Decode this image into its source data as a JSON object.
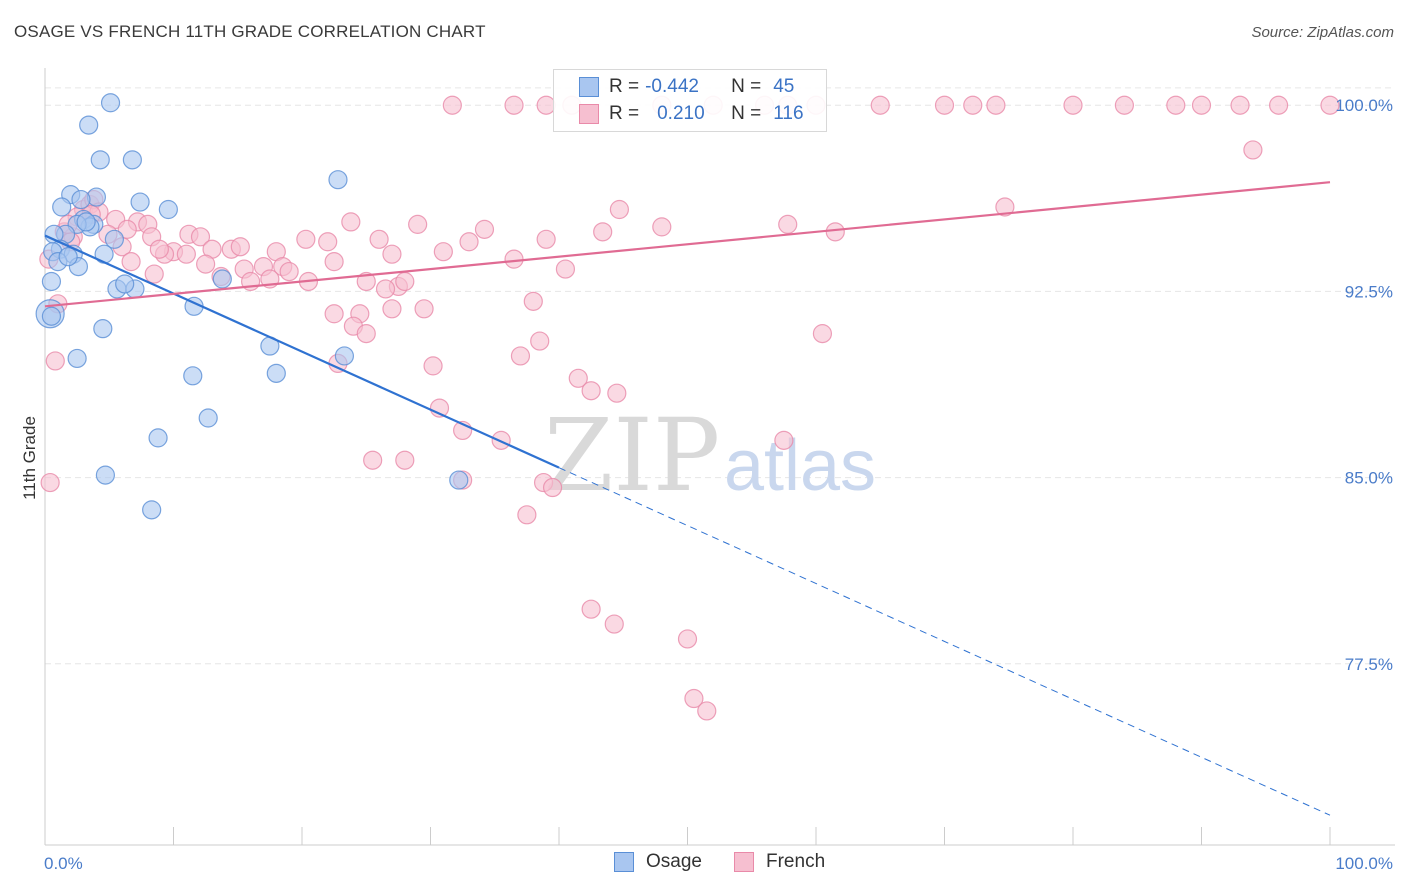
{
  "title": "OSAGE VS FRENCH 11TH GRADE CORRELATION CHART",
  "source": "Source: ZipAtlas.com",
  "watermark": {
    "zip": "ZIP",
    "atlas": "atlas"
  },
  "legend": {
    "rows": [
      {
        "r_label": "R =",
        "r_value": "-0.442",
        "n_label": "N =",
        "n_value": "45"
      },
      {
        "r_label": "R =",
        "r_value": "0.210",
        "n_label": "N =",
        "n_value": "116"
      }
    ]
  },
  "bottom_legend": {
    "osage": "Osage",
    "french": "French"
  },
  "colors": {
    "osage_fill": "#a9c6f0",
    "osage_stroke": "#5a8fd6",
    "osage_line": "#2f72d1",
    "french_fill": "#f6bfd0",
    "french_stroke": "#e98aa9",
    "french_line": "#e06b93",
    "tick_label": "#4a7cc9",
    "grid": "#e6e6e6"
  },
  "chart_data": {
    "type": "scatter",
    "title": "OSAGE VS FRENCH 11TH GRADE CORRELATION CHART",
    "xlabel": "",
    "ylabel": "11th Grade",
    "xlim": [
      0,
      100
    ],
    "ylim": [
      70.2,
      101.5
    ],
    "x_tick_labels": [
      "0.0%",
      "100.0%"
    ],
    "y_ticks": [
      100.0,
      92.5,
      85.0,
      77.5
    ],
    "y_tick_labels": [
      "100.0%",
      "92.5%",
      "85.0%",
      "77.5%"
    ],
    "series": [
      {
        "name": "Osage",
        "R": -0.442,
        "N": 45,
        "trend": {
          "x0": 0,
          "y0": 94.75,
          "x1": 40,
          "y1": 85.4,
          "dash_x1": 100,
          "dash_y1": 71.4
        },
        "points": [
          [
            5.1,
            100.1
          ],
          [
            3.4,
            99.2
          ],
          [
            4.3,
            97.8
          ],
          [
            6.8,
            97.8
          ],
          [
            22.8,
            97.0
          ],
          [
            2.0,
            96.4
          ],
          [
            1.3,
            95.9
          ],
          [
            7.4,
            96.1
          ],
          [
            4.0,
            96.3
          ],
          [
            9.6,
            95.8
          ],
          [
            3.0,
            95.4
          ],
          [
            3.8,
            95.2
          ],
          [
            3.5,
            95.1
          ],
          [
            2.5,
            95.2
          ],
          [
            1.6,
            94.8
          ],
          [
            0.7,
            94.8
          ],
          [
            5.4,
            94.6
          ],
          [
            1.2,
            94.2
          ],
          [
            0.6,
            94.1
          ],
          [
            2.2,
            94.0
          ],
          [
            4.6,
            94.0
          ],
          [
            1.0,
            93.7
          ],
          [
            2.6,
            93.5
          ],
          [
            0.5,
            92.9
          ],
          [
            5.6,
            92.6
          ],
          [
            7.0,
            92.6
          ],
          [
            13.8,
            93.0
          ],
          [
            11.6,
            91.9
          ],
          [
            0.4,
            91.6
          ],
          [
            4.5,
            91.0
          ],
          [
            17.5,
            90.3
          ],
          [
            23.3,
            89.9
          ],
          [
            2.5,
            89.8
          ],
          [
            18.0,
            89.2
          ],
          [
            11.5,
            89.1
          ],
          [
            12.7,
            87.4
          ],
          [
            8.8,
            86.6
          ],
          [
            4.7,
            85.1
          ],
          [
            32.2,
            84.9
          ],
          [
            8.3,
            83.7
          ],
          [
            0.5,
            91.5
          ],
          [
            1.8,
            93.9
          ],
          [
            3.2,
            95.3
          ],
          [
            2.8,
            96.2
          ],
          [
            6.2,
            92.8
          ]
        ],
        "sizes": [
          9,
          9,
          9,
          9,
          9,
          9,
          9,
          9,
          9,
          9,
          9,
          9,
          9,
          9,
          9,
          9,
          9,
          9,
          9,
          9,
          9,
          9,
          9,
          9,
          9,
          9,
          9,
          9,
          14,
          9,
          9,
          9,
          9,
          9,
          9,
          9,
          9,
          9,
          9,
          9,
          9,
          9,
          9,
          9,
          9
        ]
      },
      {
        "name": "French",
        "R": 0.21,
        "N": 116,
        "trend": {
          "x0": 0,
          "y0": 91.9,
          "x1": 100,
          "y1": 96.9
        },
        "points": [
          [
            31.7,
            100.0
          ],
          [
            39.0,
            100.0
          ],
          [
            41.0,
            100.0
          ],
          [
            48.0,
            100.0
          ],
          [
            52.0,
            100.0
          ],
          [
            56.0,
            100.0
          ],
          [
            60.0,
            100.0
          ],
          [
            65.0,
            100.0
          ],
          [
            70.0,
            100.0
          ],
          [
            74.0,
            100.0
          ],
          [
            80.0,
            100.0
          ],
          [
            84.0,
            100.0
          ],
          [
            88.0,
            100.0
          ],
          [
            90.0,
            100.0
          ],
          [
            93.0,
            100.0
          ],
          [
            96.0,
            100.0
          ],
          [
            100.0,
            100.0
          ],
          [
            36.5,
            100.0
          ],
          [
            57.8,
            100.0
          ],
          [
            72.2,
            100.0
          ],
          [
            94.0,
            98.2
          ],
          [
            74.7,
            95.9
          ],
          [
            44.7,
            95.8
          ],
          [
            3.0,
            95.8
          ],
          [
            3.5,
            96.0
          ],
          [
            3.8,
            96.2
          ],
          [
            4.2,
            95.7
          ],
          [
            2.5,
            95.5
          ],
          [
            5.5,
            95.4
          ],
          [
            7.2,
            95.3
          ],
          [
            8.0,
            95.2
          ],
          [
            23.8,
            95.3
          ],
          [
            29.0,
            95.2
          ],
          [
            34.2,
            95.0
          ],
          [
            43.4,
            94.9
          ],
          [
            48.0,
            95.1
          ],
          [
            57.8,
            95.2
          ],
          [
            61.5,
            94.9
          ],
          [
            1.5,
            94.9
          ],
          [
            2.2,
            94.7
          ],
          [
            4.9,
            94.8
          ],
          [
            8.3,
            94.7
          ],
          [
            11.2,
            94.8
          ],
          [
            12.1,
            94.7
          ],
          [
            20.3,
            94.6
          ],
          [
            22.0,
            94.5
          ],
          [
            26.0,
            94.6
          ],
          [
            33.0,
            94.5
          ],
          [
            39.0,
            94.6
          ],
          [
            6.0,
            94.3
          ],
          [
            10.0,
            94.1
          ],
          [
            13.0,
            94.2
          ],
          [
            14.5,
            94.2
          ],
          [
            15.2,
            94.3
          ],
          [
            18.0,
            94.1
          ],
          [
            9.3,
            94.0
          ],
          [
            11.0,
            94.0
          ],
          [
            27.0,
            94.0
          ],
          [
            31.0,
            94.1
          ],
          [
            0.3,
            93.8
          ],
          [
            6.7,
            93.7
          ],
          [
            12.5,
            93.6
          ],
          [
            15.5,
            93.4
          ],
          [
            17.0,
            93.5
          ],
          [
            18.5,
            93.5
          ],
          [
            19.0,
            93.3
          ],
          [
            22.5,
            93.7
          ],
          [
            36.5,
            93.8
          ],
          [
            40.5,
            93.4
          ],
          [
            8.5,
            93.2
          ],
          [
            13.7,
            93.1
          ],
          [
            16.0,
            92.9
          ],
          [
            17.5,
            93.0
          ],
          [
            20.5,
            92.9
          ],
          [
            25.0,
            92.9
          ],
          [
            27.5,
            92.7
          ],
          [
            28.0,
            92.9
          ],
          [
            26.5,
            92.6
          ],
          [
            38.0,
            92.1
          ],
          [
            27.0,
            91.8
          ],
          [
            29.5,
            91.8
          ],
          [
            22.5,
            91.6
          ],
          [
            24.5,
            91.6
          ],
          [
            24.0,
            91.1
          ],
          [
            25.0,
            90.8
          ],
          [
            38.5,
            90.5
          ],
          [
            60.5,
            90.8
          ],
          [
            37.0,
            89.9
          ],
          [
            30.2,
            89.5
          ],
          [
            22.8,
            89.6
          ],
          [
            41.5,
            89.0
          ],
          [
            42.5,
            88.5
          ],
          [
            44.5,
            88.4
          ],
          [
            30.7,
            87.8
          ],
          [
            32.5,
            86.9
          ],
          [
            35.5,
            86.5
          ],
          [
            57.5,
            86.5
          ],
          [
            25.5,
            85.7
          ],
          [
            28.0,
            85.7
          ],
          [
            32.5,
            84.9
          ],
          [
            38.8,
            84.8
          ],
          [
            39.5,
            84.6
          ],
          [
            37.5,
            83.5
          ],
          [
            42.5,
            79.7
          ],
          [
            44.3,
            79.1
          ],
          [
            50.0,
            78.5
          ],
          [
            50.5,
            76.1
          ],
          [
            51.5,
            75.6
          ],
          [
            0.4,
            84.8
          ],
          [
            0.8,
            89.7
          ],
          [
            1.0,
            92.0
          ],
          [
            2.0,
            94.5
          ],
          [
            1.8,
            95.2
          ],
          [
            3.6,
            95.6
          ],
          [
            6.4,
            95.0
          ],
          [
            8.9,
            94.2
          ]
        ],
        "sizes": [
          9,
          9,
          9,
          9,
          9,
          9,
          9,
          9,
          9,
          9,
          9,
          9,
          9,
          9,
          9,
          9,
          9,
          9,
          9,
          9,
          9,
          9,
          9,
          9,
          9,
          9,
          9,
          9,
          9,
          9,
          9,
          9,
          9,
          9,
          9,
          9,
          9,
          9,
          9,
          9,
          9,
          9,
          9,
          9,
          9,
          9,
          9,
          9,
          9,
          9,
          9,
          9,
          9,
          9,
          9,
          9,
          9,
          9,
          9,
          9,
          9,
          9,
          9,
          9,
          9,
          9,
          9,
          9,
          9,
          9,
          9,
          9,
          9,
          9,
          9,
          9,
          9,
          9,
          9,
          9,
          9,
          9,
          9,
          9,
          9,
          9,
          9,
          9,
          9,
          9,
          9,
          9,
          9,
          9,
          9,
          9,
          9,
          9,
          9,
          9,
          9,
          9,
          9,
          9,
          9,
          9,
          9,
          9,
          9,
          9,
          9,
          9,
          9,
          9,
          9,
          9,
          12,
          17,
          20,
          12,
          11,
          10,
          9,
          9
        ]
      }
    ]
  }
}
